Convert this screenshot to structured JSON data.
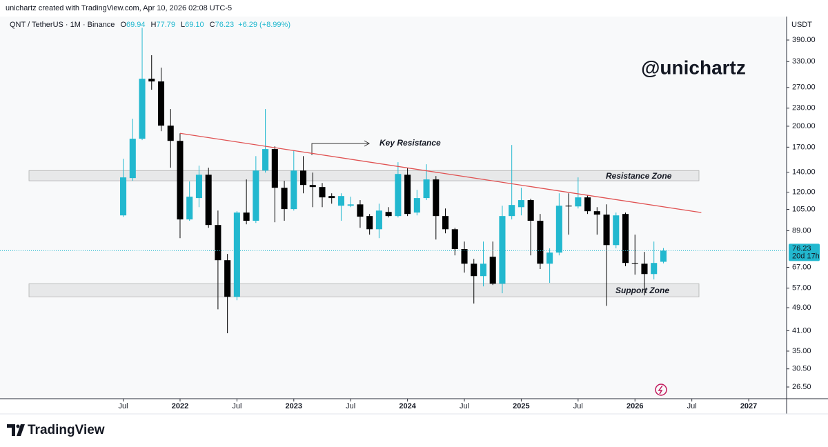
{
  "chart_data": {
    "type": "candlestick",
    "credit": "unichartz created with TradingView.com, Apr 10, 2026 02:08 UTC-5",
    "symbol": "QNT / TetherUS · 1M · Binance",
    "ohlc_legend": [
      {
        "key": "O",
        "value": "69.94"
      },
      {
        "key": "H",
        "value": "77.79"
      },
      {
        "key": "L",
        "value": "69.10"
      },
      {
        "key": "C",
        "value": "76.23"
      }
    ],
    "change": "+6.29 (+8.99%)",
    "watermark": "@unichartz",
    "y_unit": "USDT",
    "brand": "TradingView",
    "up_color": "#22b8cf",
    "down_color": "#000000",
    "log_scale": true,
    "grid": false,
    "x": [
      "2021-07",
      "2021-08",
      "2021-09",
      "2021-10",
      "2021-11",
      "2021-12",
      "2022-01",
      "2022-02",
      "2022-03",
      "2022-04",
      "2022-05",
      "2022-06",
      "2022-07",
      "2022-08",
      "2022-09",
      "2022-10",
      "2022-11",
      "2022-12",
      "2023-01",
      "2023-02",
      "2023-03",
      "2023-04",
      "2023-05",
      "2023-06",
      "2023-07",
      "2023-08",
      "2023-09",
      "2023-10",
      "2023-11",
      "2023-12",
      "2024-01",
      "2024-02",
      "2024-03",
      "2024-04",
      "2024-05",
      "2024-06",
      "2024-07",
      "2024-08",
      "2024-09",
      "2024-10",
      "2024-11",
      "2024-12",
      "2025-01",
      "2025-02",
      "2025-03",
      "2025-04",
      "2025-05",
      "2025-06",
      "2025-07",
      "2025-08",
      "2025-09",
      "2025-10",
      "2025-11",
      "2025-12",
      "2026-01",
      "2026-02",
      "2026-03",
      "2026-04"
    ],
    "open": [
      100.2,
      133.8,
      181.5,
      288.9,
      282.9,
      200.9,
      178.5,
      97.1,
      114.6,
      137.3,
      93.0,
      70.8,
      53.3,
      102.4,
      96.1,
      141.8,
      167.5,
      124.1,
      105.2,
      141.8,
      126.8,
      124.8,
      116.4,
      108.0,
      108.0,
      109.1,
      99.7,
      90.0,
      102.9,
      99.7,
      137.3,
      102.4,
      114.6,
      132.4,
      99.7,
      90.0,
      77.2,
      68.9,
      62.6,
      72.7,
      59.0,
      99.7,
      106.8,
      112.8,
      96.1,
      68.9,
      75.1,
      108.0,
      107.4,
      115.2,
      103.5,
      100.8,
      79.6,
      101.3,
      69.3,
      68.9,
      63.6,
      69.94
    ],
    "high": [
      155.4,
      211.9,
      429,
      346.7,
      314.9,
      228.4,
      189.3,
      130.3,
      147.3,
      145.0,
      104.0,
      74.3,
      103.5,
      132.4,
      158.6,
      228.4,
      171.1,
      131.0,
      165.7,
      158.6,
      139.6,
      128.8,
      118.9,
      118.9,
      115.8,
      112.8,
      101.3,
      109.7,
      106.8,
      151.3,
      145.0,
      122.1,
      148.9,
      135.9,
      105.7,
      91.0,
      81.8,
      71.5,
      81.8,
      81.8,
      108.0,
      172.9,
      124.1,
      114.0,
      101.3,
      77.6,
      118.9,
      118.9,
      134.5,
      117.0,
      106.8,
      109.1,
      102.4,
      102.4,
      86.3,
      75.5,
      81.8,
      77.79
    ],
    "low": [
      99.0,
      131.0,
      179.6,
      265.3,
      192.4,
      145.0,
      84.0,
      96.1,
      106.8,
      91.0,
      48.4,
      40.2,
      51.9,
      93.5,
      94.5,
      139.6,
      95.0,
      96.1,
      104.0,
      118.9,
      106.8,
      106.8,
      109.7,
      96.1,
      106.8,
      91.0,
      86.3,
      84.0,
      98.6,
      98.6,
      99.7,
      100.2,
      112.8,
      83.1,
      87.2,
      73.5,
      64.3,
      50.6,
      57.8,
      58.4,
      54.8,
      97.1,
      100.2,
      73.5,
      66.1,
      59.4,
      73.5,
      86.3,
      105.7,
      101.3,
      86.3,
      49.7,
      77.6,
      67.6,
      63.3,
      53.9,
      61.0,
      69.1
    ],
    "close": [
      134.5,
      181.5,
      288.9,
      282.9,
      200.9,
      178.5,
      97.1,
      115.8,
      137.3,
      93.0,
      70.8,
      53.3,
      102.4,
      96.1,
      141.8,
      167.5,
      124.1,
      105.2,
      141.8,
      126.8,
      124.8,
      115.2,
      114.6,
      116.4,
      109.1,
      99.2,
      90.0,
      104.0,
      99.7,
      138.1,
      101.3,
      114.6,
      132.4,
      99.7,
      90.0,
      77.2,
      68.9,
      62.6,
      68.9,
      59.0,
      99.7,
      108.6,
      112.8,
      96.1,
      68.9,
      75.1,
      108.0,
      107.4,
      115.2,
      103.5,
      100.8,
      79.6,
      100.2,
      69.3,
      68.9,
      63.6,
      69.3,
      76.23
    ],
    "xlim": [
      "2020-06",
      "2027-05"
    ],
    "xticks": [
      {
        "value": "2021-07",
        "label": "Jul"
      },
      {
        "value": "2022-01",
        "label": "2022"
      },
      {
        "value": "2022-07",
        "label": "Jul"
      },
      {
        "value": "2023-01",
        "label": "2023"
      },
      {
        "value": "2023-07",
        "label": "Jul"
      },
      {
        "value": "2024-01",
        "label": "2024"
      },
      {
        "value": "2024-07",
        "label": "Jul"
      },
      {
        "value": "2025-01",
        "label": "2025"
      },
      {
        "value": "2025-07",
        "label": "Jul"
      },
      {
        "value": "2026-01",
        "label": "2026"
      },
      {
        "value": "2026-07",
        "label": "Jul"
      },
      {
        "value": "2027-01",
        "label": "2027"
      }
    ],
    "ylim": [
      24.2,
      457.9
    ],
    "yticks": [
      {
        "value": 390,
        "label": "390.00"
      },
      {
        "value": 330,
        "label": "330.00"
      },
      {
        "value": 270,
        "label": "270.00"
      },
      {
        "value": 230,
        "label": "230.00"
      },
      {
        "value": 200,
        "label": "200.00"
      },
      {
        "value": 170,
        "label": "170.00"
      },
      {
        "value": 140,
        "label": "140.00"
      },
      {
        "value": 120,
        "label": "120.00"
      },
      {
        "value": 105,
        "label": "105.00"
      },
      {
        "value": 89,
        "label": "89.00"
      },
      {
        "value": 67,
        "label": "67.00"
      },
      {
        "value": 57,
        "label": "57.00"
      },
      {
        "value": 49,
        "label": "49.00"
      },
      {
        "value": 41,
        "label": "41.00"
      },
      {
        "value": 35,
        "label": "35.00"
      },
      {
        "value": 30.5,
        "label": "30.50"
      },
      {
        "value": 26.5,
        "label": "26.50"
      }
    ],
    "last_price": 76.23,
    "countdown": "20d 17h",
    "zones": [
      {
        "label": "Resistance Zone",
        "from": 131.0,
        "to": 141.8
      },
      {
        "label": "Support Zone",
        "from": 53.3,
        "to": 59.0
      }
    ],
    "trendline": {
      "x": [
        "2022-01",
        "2026-08"
      ],
      "y": [
        189.3,
        102.4
      ],
      "color": "#e05252"
    },
    "key_resistance": "Key Resistance"
  }
}
